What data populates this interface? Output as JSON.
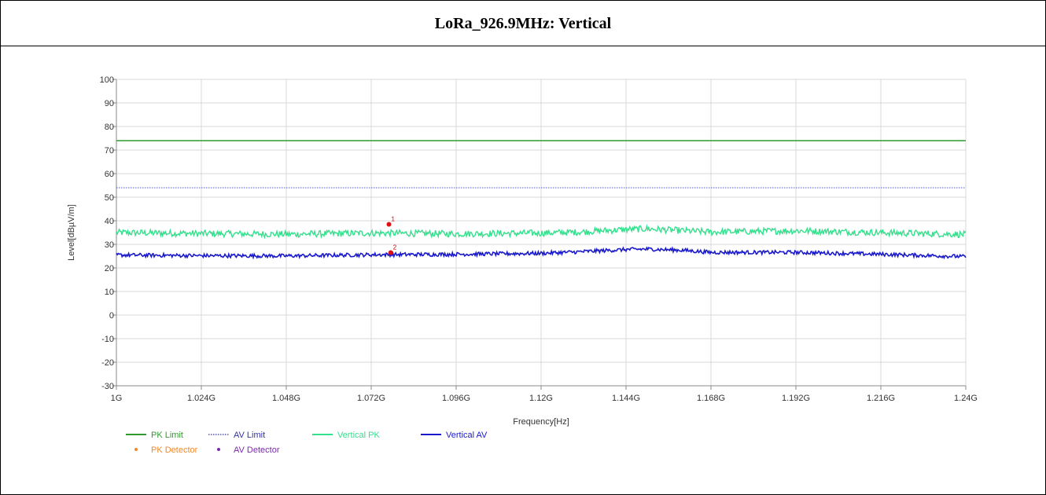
{
  "chart_data": {
    "type": "line",
    "title": "LoRa_926.9MHz: Vertical",
    "xlabel": "Frequency[Hz]",
    "ylabel": "Level[dBµV/m]",
    "xlim": [
      1000000000,
      1240000000
    ],
    "ylim": [
      -30,
      100
    ],
    "x_ticks": [
      1000000000,
      1024000000,
      1048000000,
      1072000000,
      1096000000,
      1120000000,
      1144000000,
      1168000000,
      1192000000,
      1216000000,
      1240000000
    ],
    "x_tick_labels": [
      "1G",
      "1.024G",
      "1.048G",
      "1.072G",
      "1.096G",
      "1.12G",
      "1.144G",
      "1.168G",
      "1.192G",
      "1.216G",
      "1.24G"
    ],
    "y_ticks": [
      -30,
      -20,
      -10,
      0,
      10,
      20,
      30,
      40,
      50,
      60,
      70,
      80,
      90,
      100
    ],
    "grid": true,
    "legend_position": "bottom-left",
    "series": [
      {
        "name": "PK Limit",
        "color": "#2e9a2e",
        "style": "solid",
        "x": [
          1000000000,
          1240000000
        ],
        "values": [
          74,
          74
        ]
      },
      {
        "name": "AV Limit",
        "color": "#5555dd",
        "style": "dotted",
        "x": [
          1000000000,
          1240000000
        ],
        "values": [
          54,
          54
        ]
      },
      {
        "name": "Vertical PK",
        "color": "#33e08c",
        "style": "noise",
        "x": [
          1000000000,
          1024000000,
          1048000000,
          1072000000,
          1096000000,
          1120000000,
          1130000000,
          1144000000,
          1150000000,
          1160000000,
          1168000000,
          1192000000,
          1216000000,
          1240000000
        ],
        "values": [
          35,
          34.6,
          34.3,
          34.8,
          34.5,
          34.8,
          35.2,
          36.3,
          36.6,
          35.8,
          35.2,
          35.8,
          35,
          34.2
        ]
      },
      {
        "name": "Vertical AV",
        "color": "#1a1acc",
        "style": "noise",
        "x": [
          1000000000,
          1024000000,
          1048000000,
          1072000000,
          1096000000,
          1120000000,
          1130000000,
          1144000000,
          1150000000,
          1160000000,
          1168000000,
          1192000000,
          1216000000,
          1240000000
        ],
        "values": [
          25.5,
          25.2,
          25.1,
          25.6,
          25.8,
          26.2,
          26.8,
          27.8,
          28,
          27.5,
          26.6,
          26.6,
          25.8,
          24.8
        ]
      }
    ],
    "markers": [
      {
        "label": "1",
        "x": 1077000000,
        "y": 38.5,
        "detector": "PK Detector"
      },
      {
        "label": "2",
        "x": 1077500000,
        "y": 26.5,
        "detector": "AV Detector"
      }
    ],
    "legend": [
      {
        "label": "PK Limit",
        "color": "#2e9a2e",
        "symbol": "line"
      },
      {
        "label": "AV Limit",
        "color": "#3333aa",
        "symbol": "dotted"
      },
      {
        "label": "Vertical PK",
        "color": "#33e08c",
        "symbol": "line"
      },
      {
        "label": "Vertical AV",
        "color": "#1a1acc",
        "symbol": "line"
      },
      {
        "label": "PK Detector",
        "color": "#f0892b",
        "symbol": "dot"
      },
      {
        "label": "AV Detector",
        "color": "#7a2aa8",
        "symbol": "dot"
      }
    ]
  }
}
